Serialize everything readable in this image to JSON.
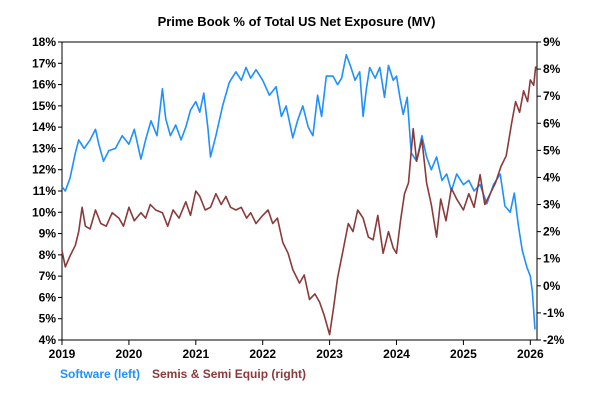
{
  "chart_data": {
    "type": "line",
    "title": "Prime Book % of Total US Net Exposure (MV)",
    "grid": false,
    "legend_position": "bottom-left",
    "x_axis": {
      "type": "time",
      "range": [
        2019,
        2026.1
      ],
      "ticks": [
        "2019",
        "2020",
        "2021",
        "2022",
        "2023",
        "2024",
        "2025",
        "2026"
      ]
    },
    "y_left": {
      "range": [
        4,
        18
      ],
      "unit": "%",
      "ticks": [
        "4%",
        "5%",
        "6%",
        "7%",
        "8%",
        "9%",
        "10%",
        "11%",
        "12%",
        "13%",
        "14%",
        "15%",
        "16%",
        "17%",
        "18%"
      ]
    },
    "y_right": {
      "range": [
        -2,
        9
      ],
      "unit": "%",
      "ticks": [
        "-2%",
        "-1%",
        "0%",
        "1%",
        "2%",
        "3%",
        "4%",
        "5%",
        "6%",
        "7%",
        "8%",
        "9%"
      ]
    },
    "series": [
      {
        "name": "Software (left)",
        "axis": "left",
        "color": "#1e90ff",
        "points": [
          [
            2019.0,
            11.2
          ],
          [
            2019.05,
            11.0
          ],
          [
            2019.12,
            11.6
          ],
          [
            2019.2,
            12.8
          ],
          [
            2019.25,
            13.4
          ],
          [
            2019.33,
            13.0
          ],
          [
            2019.42,
            13.4
          ],
          [
            2019.5,
            13.9
          ],
          [
            2019.55,
            13.2
          ],
          [
            2019.62,
            12.4
          ],
          [
            2019.7,
            12.9
          ],
          [
            2019.8,
            13.0
          ],
          [
            2019.9,
            13.6
          ],
          [
            2020.0,
            13.2
          ],
          [
            2020.08,
            13.9
          ],
          [
            2020.18,
            12.5
          ],
          [
            2020.25,
            13.4
          ],
          [
            2020.33,
            14.3
          ],
          [
            2020.42,
            13.6
          ],
          [
            2020.5,
            15.8
          ],
          [
            2020.55,
            14.4
          ],
          [
            2020.62,
            13.6
          ],
          [
            2020.7,
            14.1
          ],
          [
            2020.78,
            13.4
          ],
          [
            2020.85,
            14.0
          ],
          [
            2020.92,
            14.8
          ],
          [
            2021.0,
            15.2
          ],
          [
            2021.06,
            14.7
          ],
          [
            2021.12,
            15.6
          ],
          [
            2021.18,
            14.0
          ],
          [
            2021.22,
            12.6
          ],
          [
            2021.3,
            13.6
          ],
          [
            2021.4,
            15.0
          ],
          [
            2021.5,
            16.1
          ],
          [
            2021.6,
            16.6
          ],
          [
            2021.68,
            16.2
          ],
          [
            2021.75,
            16.8
          ],
          [
            2021.82,
            16.3
          ],
          [
            2021.9,
            16.7
          ],
          [
            2022.0,
            16.2
          ],
          [
            2022.1,
            15.5
          ],
          [
            2022.2,
            15.9
          ],
          [
            2022.28,
            14.5
          ],
          [
            2022.35,
            15.0
          ],
          [
            2022.45,
            13.5
          ],
          [
            2022.52,
            14.3
          ],
          [
            2022.6,
            15.0
          ],
          [
            2022.68,
            14.0
          ],
          [
            2022.75,
            13.6
          ],
          [
            2022.82,
            15.5
          ],
          [
            2022.88,
            14.5
          ],
          [
            2022.95,
            16.4
          ],
          [
            2023.05,
            16.4
          ],
          [
            2023.12,
            16.0
          ],
          [
            2023.18,
            16.3
          ],
          [
            2023.25,
            17.4
          ],
          [
            2023.32,
            16.8
          ],
          [
            2023.38,
            16.2
          ],
          [
            2023.45,
            16.6
          ],
          [
            2023.5,
            14.5
          ],
          [
            2023.55,
            15.8
          ],
          [
            2023.6,
            16.8
          ],
          [
            2023.68,
            16.3
          ],
          [
            2023.75,
            16.8
          ],
          [
            2023.82,
            15.4
          ],
          [
            2023.88,
            16.9
          ],
          [
            2023.95,
            16.2
          ],
          [
            2024.0,
            16.4
          ],
          [
            2024.05,
            15.4
          ],
          [
            2024.1,
            14.6
          ],
          [
            2024.16,
            15.4
          ],
          [
            2024.22,
            12.8
          ],
          [
            2024.3,
            12.4
          ],
          [
            2024.38,
            13.6
          ],
          [
            2024.45,
            12.6
          ],
          [
            2024.52,
            12.0
          ],
          [
            2024.6,
            12.6
          ],
          [
            2024.68,
            11.5
          ],
          [
            2024.75,
            11.8
          ],
          [
            2024.82,
            11.0
          ],
          [
            2024.9,
            11.8
          ],
          [
            2025.0,
            11.3
          ],
          [
            2025.08,
            11.5
          ],
          [
            2025.16,
            11.0
          ],
          [
            2025.25,
            11.3
          ],
          [
            2025.35,
            10.4
          ],
          [
            2025.45,
            11.3
          ],
          [
            2025.55,
            11.8
          ],
          [
            2025.62,
            10.3
          ],
          [
            2025.7,
            10.0
          ],
          [
            2025.76,
            10.9
          ],
          [
            2025.82,
            9.4
          ],
          [
            2025.88,
            8.2
          ],
          [
            2025.95,
            7.4
          ],
          [
            2026.0,
            7.0
          ],
          [
            2026.03,
            6.3
          ],
          [
            2026.07,
            4.5
          ]
        ]
      },
      {
        "name": "Semis & Semi Equip (right)",
        "axis": "right",
        "color": "#8b3a3a",
        "points": [
          [
            2019.0,
            1.3
          ],
          [
            2019.05,
            0.7
          ],
          [
            2019.12,
            1.1
          ],
          [
            2019.2,
            1.5
          ],
          [
            2019.25,
            2.0
          ],
          [
            2019.3,
            2.9
          ],
          [
            2019.35,
            2.2
          ],
          [
            2019.42,
            2.1
          ],
          [
            2019.5,
            2.8
          ],
          [
            2019.58,
            2.3
          ],
          [
            2019.66,
            2.2
          ],
          [
            2019.75,
            2.7
          ],
          [
            2019.85,
            2.5
          ],
          [
            2019.92,
            2.2
          ],
          [
            2020.0,
            2.9
          ],
          [
            2020.08,
            2.4
          ],
          [
            2020.18,
            2.7
          ],
          [
            2020.25,
            2.5
          ],
          [
            2020.32,
            3.0
          ],
          [
            2020.4,
            2.8
          ],
          [
            2020.5,
            2.7
          ],
          [
            2020.58,
            2.2
          ],
          [
            2020.66,
            2.8
          ],
          [
            2020.75,
            2.5
          ],
          [
            2020.85,
            3.1
          ],
          [
            2020.92,
            2.6
          ],
          [
            2021.0,
            3.5
          ],
          [
            2021.06,
            3.3
          ],
          [
            2021.14,
            2.8
          ],
          [
            2021.22,
            2.9
          ],
          [
            2021.3,
            3.4
          ],
          [
            2021.38,
            3.0
          ],
          [
            2021.45,
            3.3
          ],
          [
            2021.52,
            2.9
          ],
          [
            2021.6,
            2.8
          ],
          [
            2021.68,
            2.9
          ],
          [
            2021.76,
            2.5
          ],
          [
            2021.82,
            2.7
          ],
          [
            2021.9,
            2.3
          ],
          [
            2022.0,
            2.6
          ],
          [
            2022.08,
            2.8
          ],
          [
            2022.15,
            2.3
          ],
          [
            2022.22,
            2.5
          ],
          [
            2022.3,
            1.6
          ],
          [
            2022.38,
            1.2
          ],
          [
            2022.45,
            0.6
          ],
          [
            2022.55,
            0.1
          ],
          [
            2022.62,
            0.4
          ],
          [
            2022.7,
            -0.5
          ],
          [
            2022.78,
            -0.3
          ],
          [
            2022.85,
            -0.6
          ],
          [
            2022.92,
            -1.1
          ],
          [
            2023.0,
            -1.8
          ],
          [
            2023.06,
            -0.8
          ],
          [
            2023.12,
            0.3
          ],
          [
            2023.2,
            1.3
          ],
          [
            2023.28,
            2.3
          ],
          [
            2023.35,
            2.0
          ],
          [
            2023.42,
            2.8
          ],
          [
            2023.5,
            2.5
          ],
          [
            2023.58,
            1.8
          ],
          [
            2023.65,
            1.7
          ],
          [
            2023.72,
            2.6
          ],
          [
            2023.8,
            1.2
          ],
          [
            2023.88,
            2.0
          ],
          [
            2023.95,
            1.4
          ],
          [
            2024.0,
            1.2
          ],
          [
            2024.06,
            2.4
          ],
          [
            2024.12,
            3.4
          ],
          [
            2024.18,
            3.8
          ],
          [
            2024.25,
            5.8
          ],
          [
            2024.3,
            4.6
          ],
          [
            2024.38,
            5.4
          ],
          [
            2024.45,
            3.8
          ],
          [
            2024.52,
            3.0
          ],
          [
            2024.6,
            1.8
          ],
          [
            2024.66,
            3.2
          ],
          [
            2024.74,
            2.4
          ],
          [
            2024.82,
            3.6
          ],
          [
            2024.9,
            3.2
          ],
          [
            2025.0,
            2.8
          ],
          [
            2025.08,
            3.4
          ],
          [
            2025.16,
            2.9
          ],
          [
            2025.25,
            4.1
          ],
          [
            2025.32,
            3.0
          ],
          [
            2025.4,
            3.4
          ],
          [
            2025.48,
            3.8
          ],
          [
            2025.56,
            4.4
          ],
          [
            2025.64,
            4.8
          ],
          [
            2025.72,
            6.0
          ],
          [
            2025.78,
            6.8
          ],
          [
            2025.84,
            6.4
          ],
          [
            2025.9,
            7.2
          ],
          [
            2025.96,
            6.8
          ],
          [
            2026.0,
            7.6
          ],
          [
            2026.05,
            7.4
          ],
          [
            2026.08,
            8.1
          ]
        ]
      }
    ]
  }
}
